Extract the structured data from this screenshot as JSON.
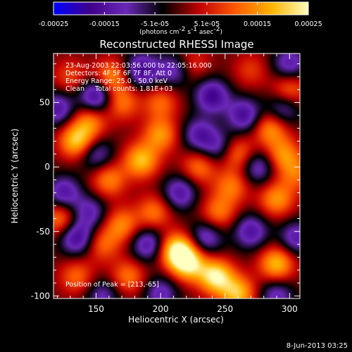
{
  "colorbar": {
    "range": [
      -0.00025,
      0.00025
    ],
    "tick_labels": [
      "-0.00025",
      "-0.00015",
      "-5.1e-05",
      "5.1e-05",
      "0.00015",
      "0.00025"
    ],
    "tick_values": [
      -0.00025,
      -0.00015,
      -5.1e-05,
      5.1e-05,
      0.00015,
      0.00025
    ],
    "units_parts": [
      "(photons cm",
      "-2",
      " s",
      "-1",
      " asec",
      "-2",
      ")"
    ],
    "colors": [
      "#0000ff",
      "#40008a",
      "#6a28b8",
      "#000000",
      "#c00000",
      "#ff5a00",
      "#ffb400",
      "#ffffc0"
    ]
  },
  "chart_data": {
    "type": "heatmap",
    "title": "Reconstructed RHESSI Image",
    "xlabel": "Heliocentric X (arcsec)",
    "ylabel": "Heliocentric Y (arcsec)",
    "xlim": [
      117,
      308
    ],
    "ylim": [
      -102,
      88
    ],
    "x_ticks": [
      150,
      200,
      250,
      300
    ],
    "y_ticks": [
      -100,
      -50,
      0,
      50
    ],
    "annotations": [
      "23-Aug-2003 22:03:56.000 to 22:05:16.000",
      "Detectors: 4F 5F 6F 7F 8F, Att 0",
      "Energy Range: 25.0 - 50.0 keV",
      "Clean     Total counts: 1.81E+03"
    ],
    "peak_label": "Position of Peak = [213,-65]",
    "peak": [
      213,
      -65
    ],
    "blobs": [
      {
        "x": 213,
        "y": -65,
        "v": 1.0
      },
      {
        "x": 243,
        "y": -85,
        "v": 0.95
      },
      {
        "x": 222,
        "y": -75,
        "v": 0.85
      },
      {
        "x": 290,
        "y": -75,
        "v": 0.75
      },
      {
        "x": 260,
        "y": -98,
        "v": 0.75
      },
      {
        "x": 135,
        "y": 20,
        "v": 0.8
      },
      {
        "x": 145,
        "y": 35,
        "v": 0.55
      },
      {
        "x": 162,
        "y": 70,
        "v": 0.6
      },
      {
        "x": 170,
        "y": 50,
        "v": 0.5
      },
      {
        "x": 200,
        "y": 50,
        "v": 0.45
      },
      {
        "x": 200,
        "y": 25,
        "v": 0.6
      },
      {
        "x": 185,
        "y": 5,
        "v": 0.75
      },
      {
        "x": 160,
        "y": -10,
        "v": 0.55
      },
      {
        "x": 230,
        "y": 0,
        "v": 0.5
      },
      {
        "x": 260,
        "y": 10,
        "v": 0.55
      },
      {
        "x": 255,
        "y": -15,
        "v": 0.5
      },
      {
        "x": 245,
        "y": -35,
        "v": 0.5
      },
      {
        "x": 285,
        "y": 30,
        "v": 0.6
      },
      {
        "x": 300,
        "y": 60,
        "v": 0.5
      },
      {
        "x": 295,
        "y": 10,
        "v": 0.55
      },
      {
        "x": 290,
        "y": -25,
        "v": 0.6
      },
      {
        "x": 305,
        "y": -5,
        "v": 0.45
      },
      {
        "x": 170,
        "y": -45,
        "v": 0.55
      },
      {
        "x": 155,
        "y": -60,
        "v": 0.45
      },
      {
        "x": 195,
        "y": -35,
        "v": 0.5
      },
      {
        "x": 175,
        "y": -85,
        "v": 0.5
      },
      {
        "x": 135,
        "y": -85,
        "v": 0.45
      },
      {
        "x": 122,
        "y": -40,
        "v": 0.55
      },
      {
        "x": 130,
        "y": 70,
        "v": 0.35
      },
      {
        "x": 225,
        "y": 80,
        "v": 0.3
      },
      {
        "x": 270,
        "y": 75,
        "v": 0.3
      },
      {
        "x": 120,
        "y": 45,
        "v": -0.6
      },
      {
        "x": 150,
        "y": 55,
        "v": -0.75
      },
      {
        "x": 185,
        "y": 75,
        "v": -0.7
      },
      {
        "x": 240,
        "y": 55,
        "v": -0.7
      },
      {
        "x": 265,
        "y": 40,
        "v": -0.65
      },
      {
        "x": 210,
        "y": 75,
        "v": -0.5
      },
      {
        "x": 230,
        "y": 25,
        "v": -0.55
      },
      {
        "x": 150,
        "y": 10,
        "v": -0.5
      },
      {
        "x": 245,
        "y": 15,
        "v": -0.45
      },
      {
        "x": 215,
        "y": -20,
        "v": -0.6
      },
      {
        "x": 275,
        "y": 0,
        "v": -0.55
      },
      {
        "x": 295,
        "y": 45,
        "v": -0.5
      },
      {
        "x": 125,
        "y": -20,
        "v": -0.6
      },
      {
        "x": 135,
        "y": -55,
        "v": -0.7
      },
      {
        "x": 145,
        "y": -35,
        "v": -0.5
      },
      {
        "x": 190,
        "y": -60,
        "v": -0.6
      },
      {
        "x": 235,
        "y": -55,
        "v": -0.55
      },
      {
        "x": 270,
        "y": -50,
        "v": -0.6
      },
      {
        "x": 305,
        "y": -55,
        "v": -0.55
      },
      {
        "x": 290,
        "y": -100,
        "v": -0.5
      },
      {
        "x": 200,
        "y": -98,
        "v": -0.5
      },
      {
        "x": 155,
        "y": -100,
        "v": -0.45
      },
      {
        "x": 300,
        "y": 80,
        "v": -0.55
      }
    ]
  },
  "footer": {
    "date": "8-Jun-2013 03:25"
  }
}
